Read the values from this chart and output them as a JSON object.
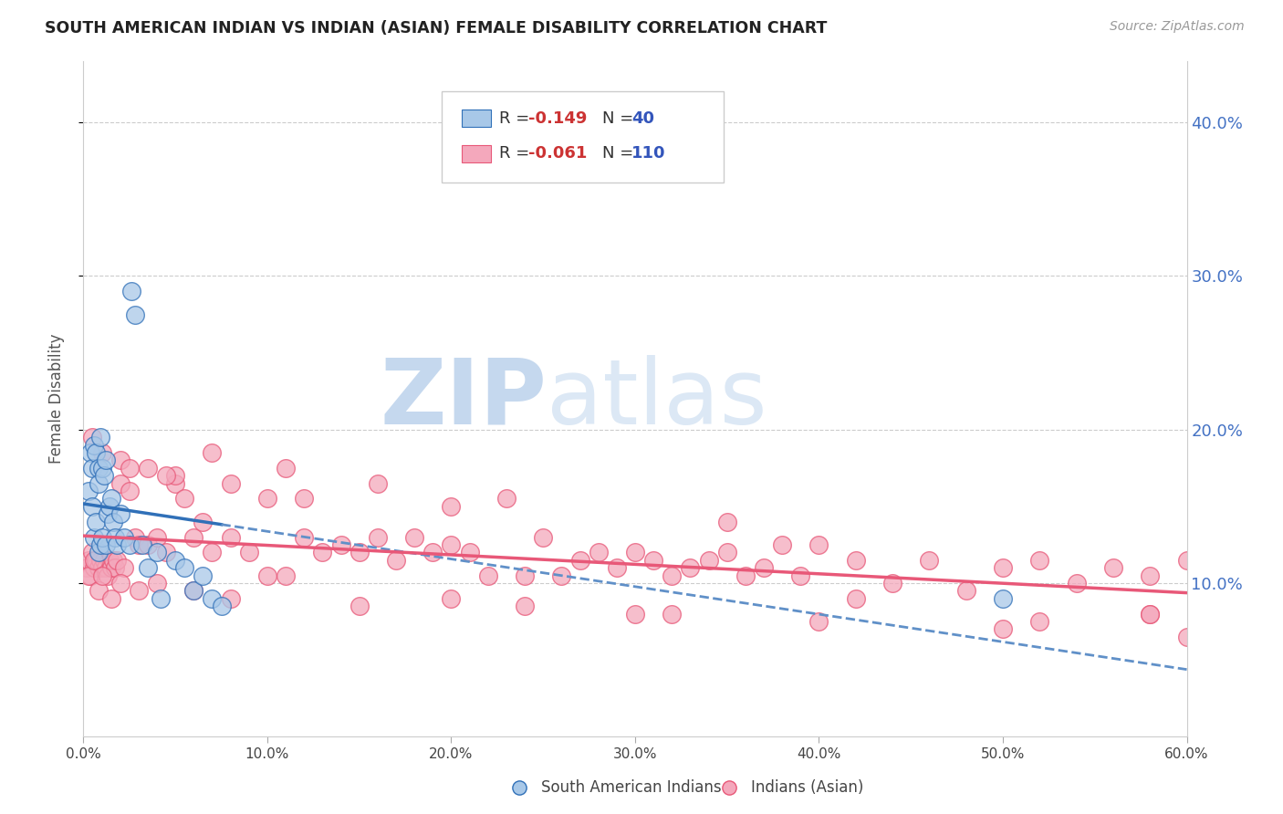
{
  "title": "SOUTH AMERICAN INDIAN VS INDIAN (ASIAN) FEMALE DISABILITY CORRELATION CHART",
  "source": "Source: ZipAtlas.com",
  "ylabel": "Female Disability",
  "legend_r1": "-0.149",
  "legend_n1": "40",
  "legend_r2": "-0.061",
  "legend_n2": "110",
  "color_blue": "#a8c8e8",
  "color_pink": "#f4a8bc",
  "line_blue": "#3070b8",
  "line_pink": "#e85878",
  "line_dash_color": "#6090c8",
  "watermark_zip": "ZIP",
  "watermark_atlas": "atlas",
  "watermark_color": "#dce8f5",
  "bg_color": "#ffffff",
  "xlim": [
    0.0,
    0.6
  ],
  "ylim": [
    0.0,
    0.44
  ],
  "yticks": [
    0.1,
    0.2,
    0.3,
    0.4
  ],
  "xticks": [
    0.0,
    0.1,
    0.2,
    0.3,
    0.4,
    0.5,
    0.6
  ],
  "sa_indian_x": [
    0.003,
    0.004,
    0.005,
    0.005,
    0.006,
    0.006,
    0.007,
    0.007,
    0.008,
    0.008,
    0.008,
    0.009,
    0.009,
    0.01,
    0.01,
    0.011,
    0.012,
    0.012,
    0.013,
    0.014,
    0.015,
    0.016,
    0.017,
    0.018,
    0.02,
    0.022,
    0.025,
    0.026,
    0.028,
    0.032,
    0.035,
    0.04,
    0.042,
    0.05,
    0.055,
    0.06,
    0.065,
    0.07,
    0.075,
    0.5
  ],
  "sa_indian_y": [
    0.16,
    0.185,
    0.175,
    0.15,
    0.19,
    0.13,
    0.185,
    0.14,
    0.175,
    0.165,
    0.12,
    0.195,
    0.125,
    0.175,
    0.13,
    0.17,
    0.18,
    0.125,
    0.145,
    0.15,
    0.155,
    0.14,
    0.13,
    0.125,
    0.145,
    0.13,
    0.125,
    0.29,
    0.275,
    0.125,
    0.11,
    0.12,
    0.09,
    0.115,
    0.11,
    0.095,
    0.105,
    0.09,
    0.085,
    0.09
  ],
  "asian_indian_x": [
    0.002,
    0.003,
    0.004,
    0.005,
    0.006,
    0.007,
    0.008,
    0.009,
    0.01,
    0.011,
    0.012,
    0.013,
    0.014,
    0.015,
    0.016,
    0.017,
    0.018,
    0.02,
    0.022,
    0.025,
    0.028,
    0.03,
    0.035,
    0.04,
    0.045,
    0.05,
    0.055,
    0.06,
    0.065,
    0.07,
    0.08,
    0.09,
    0.1,
    0.11,
    0.12,
    0.13,
    0.14,
    0.15,
    0.16,
    0.17,
    0.18,
    0.19,
    0.2,
    0.21,
    0.22,
    0.23,
    0.24,
    0.25,
    0.26,
    0.27,
    0.28,
    0.29,
    0.3,
    0.31,
    0.32,
    0.33,
    0.34,
    0.35,
    0.36,
    0.37,
    0.38,
    0.39,
    0.4,
    0.42,
    0.44,
    0.46,
    0.48,
    0.5,
    0.52,
    0.54,
    0.56,
    0.58,
    0.6,
    0.003,
    0.006,
    0.008,
    0.01,
    0.015,
    0.02,
    0.03,
    0.04,
    0.06,
    0.08,
    0.1,
    0.15,
    0.2,
    0.3,
    0.4,
    0.5,
    0.6,
    0.005,
    0.01,
    0.02,
    0.035,
    0.05,
    0.08,
    0.12,
    0.2,
    0.35,
    0.58,
    0.025,
    0.045,
    0.07,
    0.11,
    0.16,
    0.24,
    0.32,
    0.42,
    0.52,
    0.58
  ],
  "asian_indian_y": [
    0.11,
    0.115,
    0.105,
    0.12,
    0.11,
    0.115,
    0.11,
    0.115,
    0.11,
    0.115,
    0.11,
    0.105,
    0.115,
    0.11,
    0.115,
    0.11,
    0.115,
    0.165,
    0.11,
    0.16,
    0.13,
    0.125,
    0.125,
    0.13,
    0.12,
    0.165,
    0.155,
    0.13,
    0.14,
    0.12,
    0.13,
    0.12,
    0.155,
    0.105,
    0.13,
    0.12,
    0.125,
    0.12,
    0.13,
    0.115,
    0.13,
    0.12,
    0.125,
    0.12,
    0.105,
    0.155,
    0.105,
    0.13,
    0.105,
    0.115,
    0.12,
    0.11,
    0.12,
    0.115,
    0.105,
    0.11,
    0.115,
    0.12,
    0.105,
    0.11,
    0.125,
    0.105,
    0.125,
    0.115,
    0.1,
    0.115,
    0.095,
    0.11,
    0.115,
    0.1,
    0.11,
    0.105,
    0.115,
    0.105,
    0.115,
    0.095,
    0.105,
    0.09,
    0.1,
    0.095,
    0.1,
    0.095,
    0.09,
    0.105,
    0.085,
    0.09,
    0.08,
    0.075,
    0.07,
    0.065,
    0.195,
    0.185,
    0.18,
    0.175,
    0.17,
    0.165,
    0.155,
    0.15,
    0.14,
    0.08,
    0.175,
    0.17,
    0.185,
    0.175,
    0.165,
    0.085,
    0.08,
    0.09,
    0.075,
    0.08
  ]
}
